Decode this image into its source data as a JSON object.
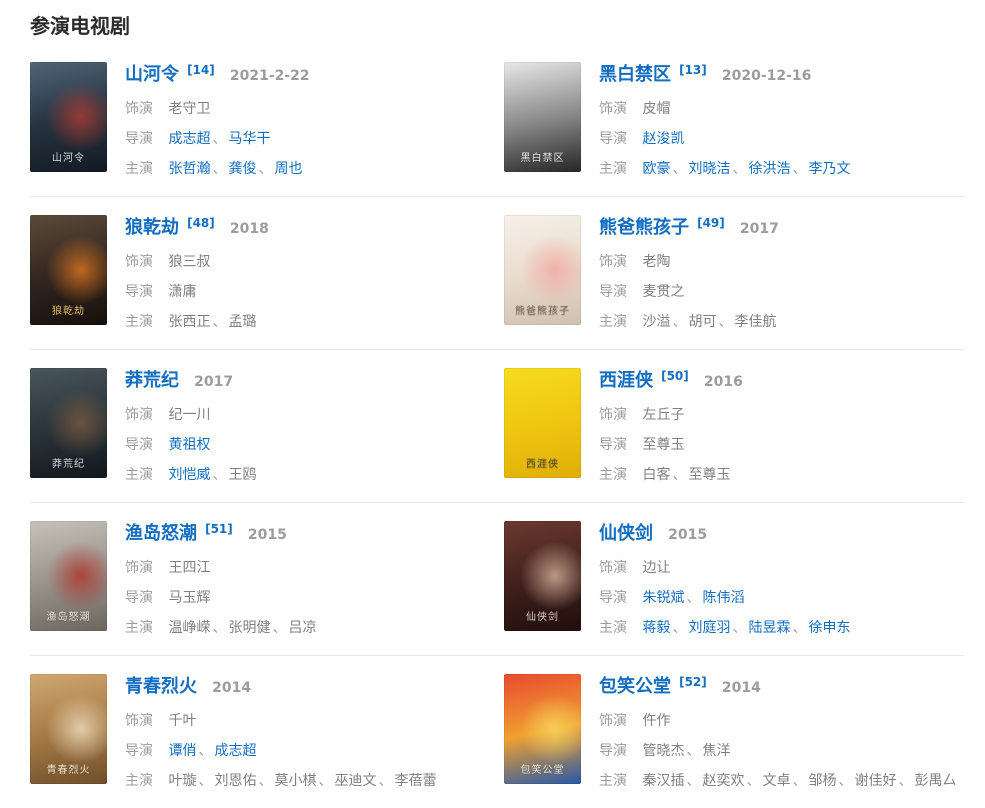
{
  "section": {
    "title": "参演电视剧"
  },
  "field_labels": {
    "role": "饰演",
    "director": "导演",
    "star": "主演"
  },
  "separator": "、",
  "colors": {
    "link_blue": "#136ec2",
    "label_gray": "#9c9c9c",
    "text_gray": "#808080",
    "date_gray": "#9c9c9c",
    "divider": "#e8e8e8",
    "heading": "#2a2a2a"
  },
  "shows": [
    {
      "title": "山河令",
      "ref": "[14]",
      "date": "2021-2-22",
      "role": "老守卫",
      "directors": [
        {
          "name": "成志超",
          "link": true
        },
        {
          "name": "马华干",
          "link": true
        }
      ],
      "stars": [
        {
          "name": "张哲瀚",
          "link": true
        },
        {
          "name": "龚俊",
          "link": true
        },
        {
          "name": "周也",
          "link": true
        }
      ],
      "poster": {
        "label": "shanheling-poster",
        "gradient": [
          "#4f6478",
          "#26333f",
          "#121a24"
        ],
        "accent": "#b23b32",
        "text_color": "#e8edf2"
      }
    },
    {
      "title": "黑白禁区",
      "ref": "[13]",
      "date": "2020-12-16",
      "role": "皮帽",
      "directors": [
        {
          "name": "赵浚凯",
          "link": true
        }
      ],
      "stars": [
        {
          "name": "欧豪",
          "link": true
        },
        {
          "name": "刘晓洁",
          "link": true
        },
        {
          "name": "徐洪浩",
          "link": true
        },
        {
          "name": "李乃文",
          "link": true
        }
      ],
      "poster": {
        "label": "heibaijinqu-poster",
        "gradient": [
          "#e8e8e8",
          "#8a8a8a",
          "#262626"
        ],
        "accent": "",
        "text_color": "#f2f2f2"
      }
    },
    {
      "title": "狼乾劫",
      "ref": "[48]",
      "date": "2018",
      "role": "狼三叔",
      "directors": [
        {
          "name": "潇庸",
          "link": false
        }
      ],
      "stars": [
        {
          "name": "张西正",
          "link": false
        },
        {
          "name": "孟璐",
          "link": false
        }
      ],
      "poster": {
        "label": "langqianjie-poster",
        "gradient": [
          "#5c4a38",
          "#332620",
          "#15100c"
        ],
        "accent": "#e07820",
        "text_color": "#f3c86a"
      }
    },
    {
      "title": "熊爸熊孩子",
      "ref": "[49]",
      "date": "2017",
      "role": "老陶",
      "directors": [
        {
          "name": "麦贯之",
          "link": false
        }
      ],
      "stars": [
        {
          "name": "沙溢",
          "link": false
        },
        {
          "name": "胡可",
          "link": false
        },
        {
          "name": "李佳航",
          "link": false
        }
      ],
      "poster": {
        "label": "xiongbaxionghaizi-poster",
        "gradient": [
          "#f7f0ea",
          "#e9dccd",
          "#cfc0ae"
        ],
        "accent": "#f3a6a0",
        "text_color": "#6b5b4a"
      }
    },
    {
      "title": "莽荒纪",
      "ref": "",
      "date": "2017",
      "role": "纪一川",
      "directors": [
        {
          "name": "黄祖权",
          "link": true
        }
      ],
      "stars": [
        {
          "name": "刘恺威",
          "link": true
        },
        {
          "name": "王鸥",
          "link": false
        }
      ],
      "poster": {
        "label": "manghuangji-poster",
        "gradient": [
          "#49565c",
          "#2a343a",
          "#12181c"
        ],
        "accent": "#7a5a40",
        "text_color": "#dfe5e8"
      }
    },
    {
      "title": "西涯侠",
      "ref": "[50]",
      "date": "2016",
      "role": "左丘子",
      "directors": [
        {
          "name": "至尊玉",
          "link": false
        }
      ],
      "stars": [
        {
          "name": "白客",
          "link": false
        },
        {
          "name": "至尊玉",
          "link": false
        }
      ],
      "poster": {
        "label": "xiyaxia-poster",
        "gradient": [
          "#f6dc1e",
          "#efc511",
          "#dfae08"
        ],
        "accent": "",
        "text_color": "#3a3a3a"
      }
    },
    {
      "title": "渔岛怒潮",
      "ref": "[51]",
      "date": "2015",
      "role": "王四江",
      "directors": [
        {
          "name": "马玉辉",
          "link": false
        }
      ],
      "stars": [
        {
          "name": "温峥嵘",
          "link": false
        },
        {
          "name": "张明健",
          "link": false
        },
        {
          "name": "吕凉",
          "link": false
        }
      ],
      "poster": {
        "label": "yudaonuchao-poster",
        "gradient": [
          "#c6c2ba",
          "#98948c",
          "#6b675f"
        ],
        "accent": "#b03028",
        "text_color": "#f2ece2"
      }
    },
    {
      "title": "仙侠剑",
      "ref": "",
      "date": "2015",
      "role": "边让",
      "directors": [
        {
          "name": "朱锐斌",
          "link": true
        },
        {
          "name": "陈伟滔",
          "link": true
        }
      ],
      "stars": [
        {
          "name": "蒋毅",
          "link": true
        },
        {
          "name": "刘庭羽",
          "link": true
        },
        {
          "name": "陆昱霖",
          "link": true
        },
        {
          "name": "徐申东",
          "link": true
        }
      ],
      "poster": {
        "label": "xianxiajian-poster",
        "gradient": [
          "#6b3a30",
          "#41201c",
          "#200e0c"
        ],
        "accent": "#d8b6a0",
        "text_color": "#eedfd2"
      }
    },
    {
      "title": "青春烈火",
      "ref": "",
      "date": "2014",
      "role": "千叶",
      "directors": [
        {
          "name": "谭俏",
          "link": true
        },
        {
          "name": "成志超",
          "link": true
        }
      ],
      "stars": [
        {
          "name": "叶璇",
          "link": false
        },
        {
          "name": "刘恩佑",
          "link": false
        },
        {
          "name": "莫小棋",
          "link": false
        },
        {
          "name": "巫迪文",
          "link": false
        },
        {
          "name": "李蓓蕾",
          "link": false
        }
      ],
      "poster": {
        "label": "qingchunliehuo-poster",
        "gradient": [
          "#d0a870",
          "#a67a46",
          "#6f4e2a"
        ],
        "accent": "#f0e0c0",
        "text_color": "#fbf3e2"
      }
    },
    {
      "title": "包笑公堂",
      "ref": "[52]",
      "date": "2014",
      "role": "仵作",
      "directors": [
        {
          "name": "管晓杰",
          "link": false
        },
        {
          "name": "焦洋",
          "link": false
        }
      ],
      "stars": [
        {
          "name": "秦汉插",
          "link": false
        },
        {
          "name": "赵奕欢",
          "link": false
        },
        {
          "name": "文卓",
          "link": false
        },
        {
          "name": "邹杨",
          "link": false
        },
        {
          "name": "谢佳好",
          "link": false
        },
        {
          "name": "彭禺厶",
          "link": false
        }
      ],
      "poster": {
        "label": "baoxiaogongtang-poster",
        "gradient": [
          "#e84a30",
          "#f0a030",
          "#2858a8"
        ],
        "accent": "#f8d860",
        "text_color": "#fff3d0"
      }
    }
  ]
}
